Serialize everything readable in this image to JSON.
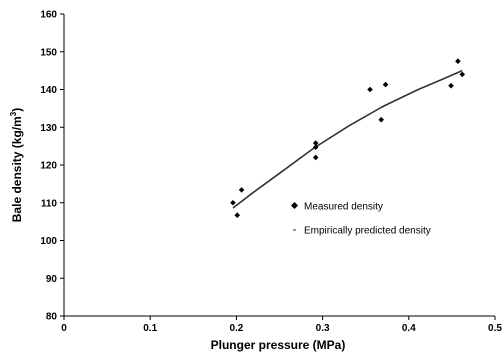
{
  "chart_data": {
    "type": "scatter",
    "xlabel": "Plunger pressure (MPa)",
    "ylabel": "Bale density (kg/m",
    "ylabel_sup": "3",
    "ylabel_tail": ")",
    "xlim": [
      0,
      0.5
    ],
    "ylim": [
      80,
      160
    ],
    "x_ticks": [
      0,
      0.1,
      0.2,
      0.3,
      0.4,
      0.5
    ],
    "x_tick_labels": [
      "0",
      "0.1",
      "0.2",
      "0.3",
      "0.4",
      "0.5"
    ],
    "y_ticks": [
      80,
      90,
      100,
      110,
      120,
      130,
      140,
      150,
      160
    ],
    "y_tick_labels": [
      "80",
      "90",
      "100",
      "110",
      "120",
      "130",
      "140",
      "150",
      "160"
    ],
    "grid": false,
    "legend_position": "right-middle",
    "series": [
      {
        "name": "Measured density",
        "kind": "markers",
        "marker": "diamond",
        "color": "#000000",
        "points": [
          {
            "x": 0.196,
            "y": 110.0
          },
          {
            "x": 0.201,
            "y": 106.7
          },
          {
            "x": 0.206,
            "y": 113.4
          },
          {
            "x": 0.292,
            "y": 125.8
          },
          {
            "x": 0.292,
            "y": 124.7
          },
          {
            "x": 0.292,
            "y": 122.0
          },
          {
            "x": 0.355,
            "y": 140.0
          },
          {
            "x": 0.368,
            "y": 132.0
          },
          {
            "x": 0.373,
            "y": 141.3
          },
          {
            "x": 0.449,
            "y": 141.0
          },
          {
            "x": 0.457,
            "y": 147.5
          },
          {
            "x": 0.462,
            "y": 144.0
          }
        ]
      },
      {
        "name": "Empirically predicted density",
        "kind": "line",
        "color": "#333333",
        "points": [
          {
            "x": 0.196,
            "y": 108.6
          },
          {
            "x": 0.22,
            "y": 112.8
          },
          {
            "x": 0.25,
            "y": 117.8
          },
          {
            "x": 0.29,
            "y": 124.5
          },
          {
            "x": 0.33,
            "y": 130.3
          },
          {
            "x": 0.37,
            "y": 135.5
          },
          {
            "x": 0.41,
            "y": 139.9
          },
          {
            "x": 0.44,
            "y": 142.8
          },
          {
            "x": 0.462,
            "y": 145.0
          }
        ]
      }
    ]
  }
}
